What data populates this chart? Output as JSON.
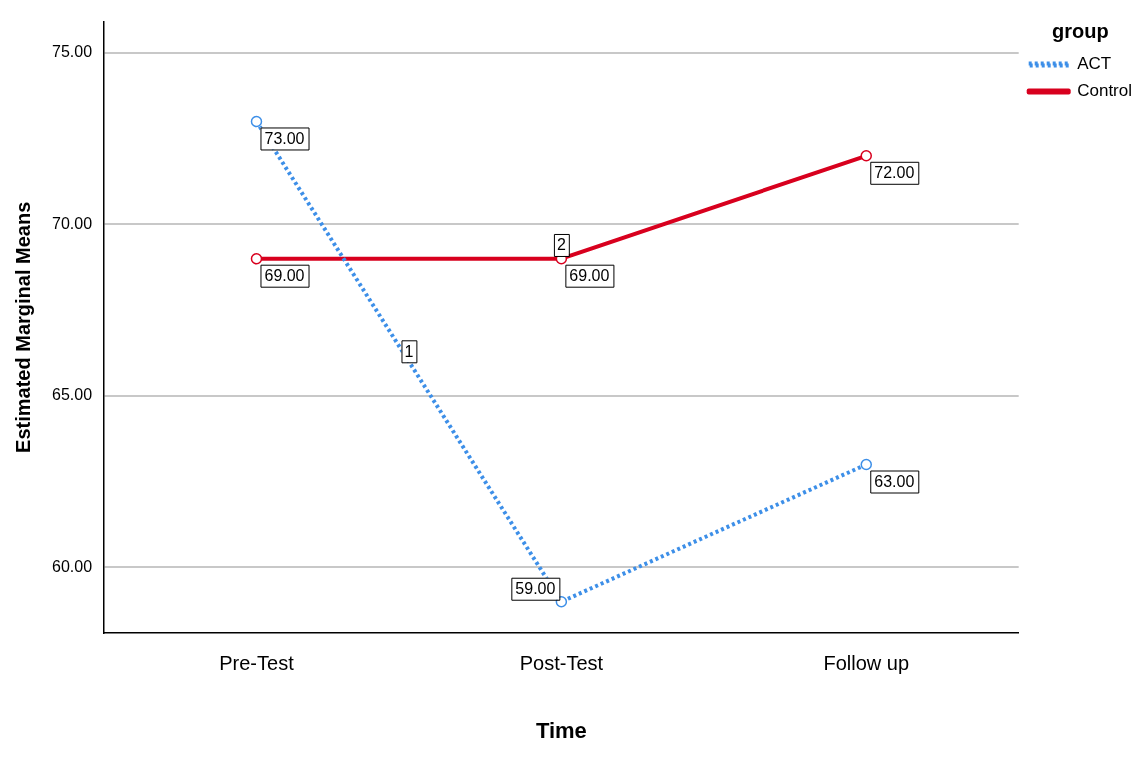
{
  "chart_data": {
    "type": "line",
    "xlabel": "Time",
    "ylabel": "Estimated Marginal Means",
    "legend_title": "group",
    "legend": "top right",
    "categories": [
      "Pre-Test",
      "Post-Test",
      "Follow up"
    ],
    "series": [
      {
        "name": "ACT",
        "color": "#3d8fe8",
        "line_style": "dotted",
        "values": [
          73,
          59,
          63
        ],
        "value_labels": [
          "73.00",
          "59.00",
          "63.00"
        ]
      },
      {
        "name": "Control",
        "color": "#d8001e",
        "line_style": "solid",
        "values": [
          69,
          69,
          72
        ],
        "value_labels": [
          "69.00",
          "69.00",
          "72.00"
        ]
      }
    ],
    "marker": "circle",
    "grid": "y",
    "ylim": [
      58.1,
      75.9
    ],
    "yticks": [
      {
        "value": 60,
        "label": "60.00"
      },
      {
        "value": 65,
        "label": "65.00"
      },
      {
        "value": 70,
        "label": "70.00"
      },
      {
        "value": 75,
        "label": "75.00"
      }
    ],
    "annotations": [
      {
        "text": "1",
        "y": 66.3
      },
      {
        "text": "2",
        "x": "Post-Test",
        "y": 69.4
      }
    ]
  }
}
